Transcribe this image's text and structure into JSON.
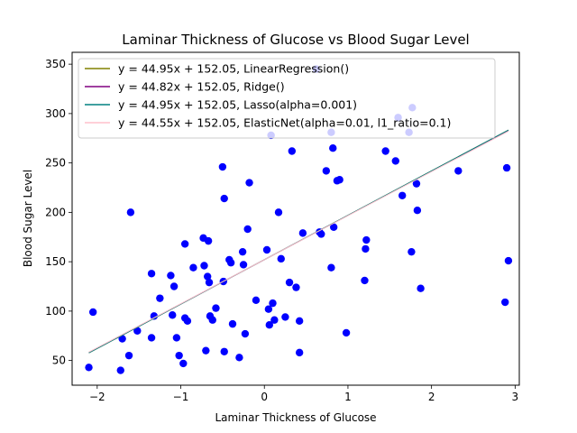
{
  "chart_data": {
    "type": "scatter",
    "title": "Laminar Thickness of Glucose vs Blood Sugar Level",
    "xlabel": "Laminar Thickness of Glucose",
    "ylabel": "Blood Sugar Level",
    "xlim": [
      -2.3,
      3.05
    ],
    "ylim": [
      25,
      362
    ],
    "xticks": [
      -2,
      -1,
      0,
      1,
      2,
      3
    ],
    "yticks": [
      50,
      100,
      150,
      200,
      250,
      300,
      350
    ],
    "grid": false,
    "legend_position": "top-left",
    "scatter": {
      "color": "#0000ff",
      "points": [
        [
          -2.1,
          43
        ],
        [
          -2.05,
          99
        ],
        [
          -1.72,
          40
        ],
        [
          -1.7,
          72
        ],
        [
          -1.62,
          55
        ],
        [
          -1.6,
          200
        ],
        [
          -1.52,
          80
        ],
        [
          -1.35,
          138
        ],
        [
          -1.35,
          73
        ],
        [
          -1.32,
          95
        ],
        [
          -1.25,
          113
        ],
        [
          -1.12,
          136
        ],
        [
          -1.1,
          96
        ],
        [
          -1.08,
          125
        ],
        [
          -1.05,
          73
        ],
        [
          -1.02,
          55
        ],
        [
          -0.97,
          47
        ],
        [
          -0.95,
          168
        ],
        [
          -0.95,
          93
        ],
        [
          -0.92,
          90
        ],
        [
          -0.85,
          144
        ],
        [
          -0.73,
          174
        ],
        [
          -0.72,
          146
        ],
        [
          -0.7,
          60
        ],
        [
          -0.68,
          135
        ],
        [
          -0.67,
          171
        ],
        [
          -0.66,
          129
        ],
        [
          -0.65,
          95
        ],
        [
          -0.62,
          91
        ],
        [
          -0.58,
          103
        ],
        [
          -0.5,
          246
        ],
        [
          -0.49,
          130
        ],
        [
          -0.48,
          214
        ],
        [
          -0.48,
          59
        ],
        [
          -0.42,
          152
        ],
        [
          -0.4,
          149
        ],
        [
          -0.38,
          87
        ],
        [
          -0.3,
          53
        ],
        [
          -0.26,
          160
        ],
        [
          -0.25,
          147
        ],
        [
          -0.23,
          77
        ],
        [
          -0.2,
          183
        ],
        [
          -0.18,
          230
        ],
        [
          -0.1,
          111
        ],
        [
          0.03,
          162
        ],
        [
          0.05,
          102
        ],
        [
          0.06,
          86
        ],
        [
          0.08,
          278
        ],
        [
          0.1,
          108
        ],
        [
          0.12,
          91
        ],
        [
          0.17,
          200
        ],
        [
          0.2,
          153
        ],
        [
          0.25,
          94
        ],
        [
          0.3,
          129
        ],
        [
          0.33,
          262
        ],
        [
          0.38,
          124
        ],
        [
          0.42,
          90
        ],
        [
          0.42,
          58
        ],
        [
          0.46,
          179
        ],
        [
          0.62,
          345
        ],
        [
          0.66,
          180
        ],
        [
          0.68,
          178
        ],
        [
          0.74,
          242
        ],
        [
          0.8,
          144
        ],
        [
          0.8,
          281
        ],
        [
          0.82,
          265
        ],
        [
          0.83,
          185
        ],
        [
          0.87,
          232
        ],
        [
          0.9,
          233
        ],
        [
          0.98,
          78
        ],
        [
          1.2,
          131
        ],
        [
          1.21,
          163
        ],
        [
          1.22,
          172
        ],
        [
          1.45,
          262
        ],
        [
          1.57,
          252
        ],
        [
          1.6,
          296
        ],
        [
          1.65,
          217
        ],
        [
          1.73,
          281
        ],
        [
          1.76,
          160
        ],
        [
          1.77,
          306
        ],
        [
          1.82,
          229
        ],
        [
          1.83,
          202
        ],
        [
          1.87,
          123
        ],
        [
          2.32,
          242
        ],
        [
          2.88,
          109
        ],
        [
          2.9,
          245
        ],
        [
          2.92,
          151
        ]
      ]
    },
    "series": [
      {
        "name": "y = 44.95x + 152.05, LinearRegression()",
        "slope": 44.95,
        "intercept": 152.05,
        "color": "#808000"
      },
      {
        "name": "y = 44.82x + 152.05, Ridge()",
        "slope": 44.82,
        "intercept": 152.05,
        "color": "#800080"
      },
      {
        "name": "y = 44.95x + 152.05, Lasso(alpha=0.001)",
        "slope": 44.95,
        "intercept": 152.05,
        "color": "#008080"
      },
      {
        "name": "y = 44.55x + 152.05, ElasticNet(alpha=0.01, l1_ratio=0.1)",
        "slope": 44.55,
        "intercept": 152.05,
        "color": "#ffc0cb"
      }
    ],
    "line_x_range": [
      -2.1,
      2.92
    ]
  }
}
